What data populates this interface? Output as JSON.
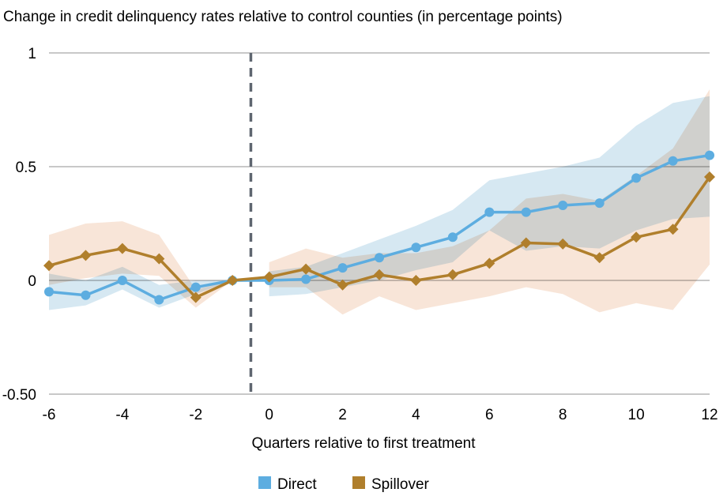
{
  "chart_data": {
    "type": "line",
    "title": "Change in credit delinquency rates relative to control counties (in percentage points)",
    "xlabel": "Quarters relative to first treatment",
    "ylabel": "",
    "xlim": [
      -6,
      12
    ],
    "ylim": [
      -0.5,
      1
    ],
    "x_ticks": [
      "-6",
      "-4",
      "-2",
      "0",
      "2",
      "4",
      "6",
      "8",
      "10",
      "12"
    ],
    "y_ticks": [
      "1",
      "0.5",
      "0",
      "-0.50"
    ],
    "grid": "horizontal",
    "legend_position": "bottom",
    "event_line_x": -0.5,
    "x": [
      -6,
      -5,
      -4,
      -3,
      -2,
      -1,
      0,
      1,
      2,
      3,
      4,
      5,
      6,
      7,
      8,
      9,
      10,
      11,
      12
    ],
    "series": [
      {
        "name": "Direct",
        "color": "#5dade0",
        "band_color": "#d6e8f2",
        "marker": "circle",
        "values": [
          -0.05,
          -0.065,
          0.0,
          -0.085,
          -0.03,
          0,
          0,
          0.005,
          0.055,
          0.1,
          0.145,
          0.19,
          0.3,
          0.3,
          0.33,
          0.34,
          0.45,
          0.525,
          0.55
        ],
        "upper": [
          0.03,
          0.0,
          0.06,
          -0.02,
          0.0,
          0,
          0.04,
          0.06,
          0.12,
          0.18,
          0.24,
          0.31,
          0.44,
          0.47,
          0.5,
          0.54,
          0.68,
          0.78,
          0.81
        ],
        "lower": [
          -0.13,
          -0.11,
          -0.04,
          -0.12,
          -0.06,
          0,
          -0.07,
          -0.06,
          -0.03,
          0.0,
          0.045,
          0.08,
          0.22,
          0.13,
          0.15,
          0.14,
          0.22,
          0.27,
          0.28
        ]
      },
      {
        "name": "Spillover",
        "color": "#b07f2c",
        "band_color": "#f8e5d8",
        "marker": "diamond",
        "values": [
          0.065,
          0.11,
          0.14,
          0.095,
          -0.075,
          0,
          0.015,
          0.05,
          -0.02,
          0.025,
          0,
          0.025,
          0.075,
          0.165,
          0.16,
          0.1,
          0.19,
          0.225,
          0.455
        ],
        "upper": [
          0.2,
          0.25,
          0.26,
          0.2,
          -0.04,
          0,
          0.08,
          0.14,
          0.1,
          0.12,
          0.12,
          0.15,
          0.22,
          0.36,
          0.38,
          0.35,
          0.46,
          0.58,
          0.84
        ],
        "lower": [
          -0.02,
          0.01,
          0.03,
          0.02,
          -0.12,
          0,
          -0.03,
          -0.03,
          -0.15,
          -0.07,
          -0.13,
          -0.1,
          -0.07,
          -0.03,
          -0.06,
          -0.14,
          -0.1,
          -0.13,
          0.07
        ]
      }
    ]
  }
}
